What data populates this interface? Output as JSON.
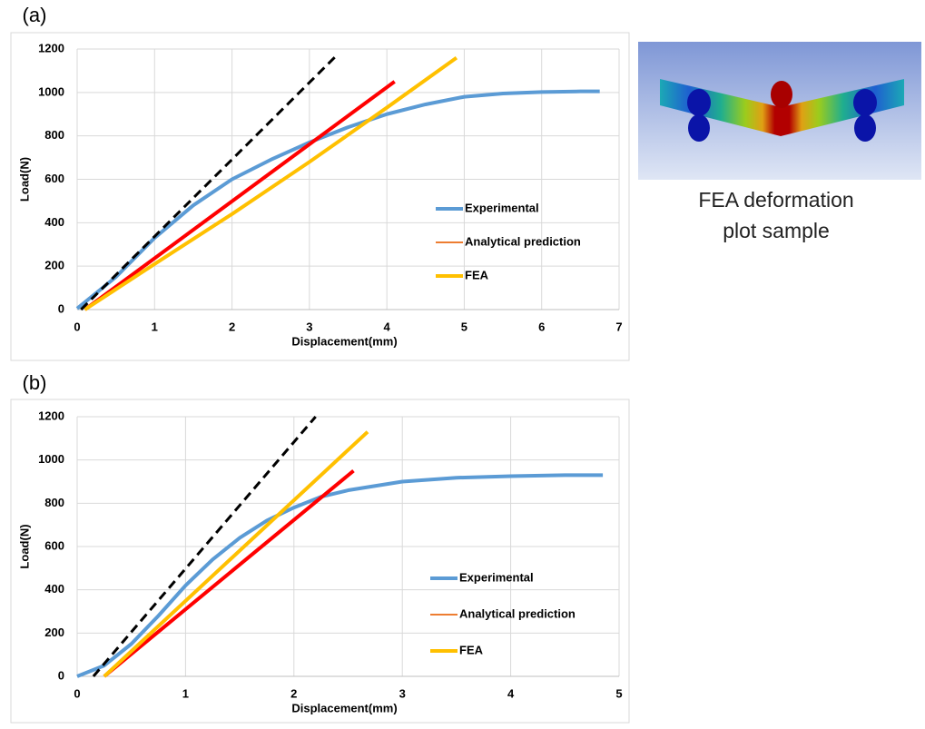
{
  "chart_data": [
    {
      "type": "line",
      "panel_label": "(a)",
      "x_label": "Displacement(mm)",
      "y_label": "Load(N)",
      "xlim": [
        0,
        7
      ],
      "xticks": [
        0,
        1,
        2,
        3,
        4,
        5,
        6,
        7
      ],
      "ylim": [
        0,
        1200
      ],
      "yticks": [
        0,
        200,
        400,
        600,
        800,
        1000,
        1200
      ],
      "grid": true,
      "series": [
        {
          "name": "Experimental",
          "color": "#5b9bd5",
          "x": [
            0,
            0.5,
            1,
            1.5,
            2,
            2.5,
            3,
            3.5,
            4,
            4.5,
            5,
            5.5,
            6,
            6.5,
            6.75
          ],
          "values": [
            5,
            150,
            330,
            480,
            600,
            690,
            770,
            840,
            900,
            945,
            980,
            995,
            1002,
            1005,
            1005
          ]
        },
        {
          "name": "Analytical prediction",
          "color": "#ff0000",
          "legend_color": "#ed7d31",
          "x": [
            0.1,
            4.1
          ],
          "values": [
            0,
            1050
          ]
        },
        {
          "name": "FEA",
          "color": "#ffc000",
          "x": [
            0.1,
            1,
            2,
            3,
            4,
            4.9
          ],
          "values": [
            0,
            210,
            440,
            680,
            930,
            1160
          ]
        },
        {
          "color": "#000000",
          "dashed": true,
          "x": [
            0.05,
            3.35
          ],
          "values": [
            0,
            1170
          ]
        }
      ]
    },
    {
      "type": "line",
      "panel_label": "(b)",
      "x_label": "Displacement(mm)",
      "y_label": "Load(N)",
      "xlim": [
        0,
        5
      ],
      "xticks": [
        0,
        1,
        2,
        3,
        4,
        5
      ],
      "ylim": [
        0,
        1200
      ],
      "yticks": [
        0,
        200,
        400,
        600,
        800,
        1000,
        1200
      ],
      "grid": true,
      "series": [
        {
          "name": "Experimental",
          "color": "#5b9bd5",
          "x": [
            0,
            0.25,
            0.5,
            0.75,
            1,
            1.25,
            1.5,
            1.75,
            2,
            2.25,
            2.5,
            3,
            3.5,
            4,
            4.5,
            4.85
          ],
          "values": [
            0,
            50,
            150,
            280,
            420,
            540,
            640,
            720,
            780,
            830,
            860,
            900,
            918,
            925,
            930,
            930
          ]
        },
        {
          "name": "Analytical prediction",
          "color": "#ff0000",
          "legend_color": "#ed7d31",
          "x": [
            0.25,
            2.55
          ],
          "values": [
            0,
            950
          ]
        },
        {
          "name": "FEA",
          "color": "#ffc000",
          "x": [
            0.25,
            2.68
          ],
          "values": [
            0,
            1130
          ]
        },
        {
          "color": "#000000",
          "dashed": true,
          "x": [
            0.15,
            2.2
          ],
          "values": [
            0,
            1200
          ]
        }
      ]
    }
  ],
  "figure": {
    "caption_lines": [
      "FEA deformation",
      "plot sample"
    ]
  }
}
